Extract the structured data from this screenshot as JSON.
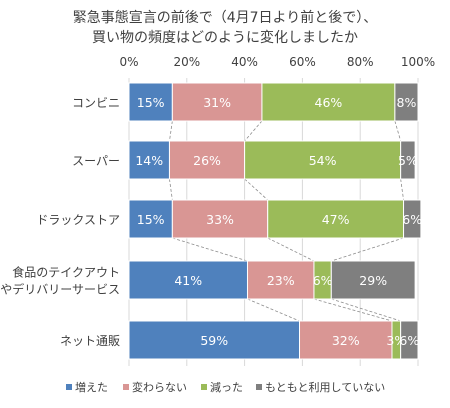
{
  "chart_data": {
    "type": "bar",
    "stacked": true,
    "orientation": "horizontal",
    "title_lines": [
      "緊急事態宣言の前後で（4月7日より前と後で）、",
      "買い物の頻度はどのように変化しましたか"
    ],
    "x_ticks": [
      "0%",
      "20%",
      "40%",
      "60%",
      "80%",
      "100%"
    ],
    "xlim": [
      0,
      100
    ],
    "categories": [
      {
        "lines": [
          "コンビニ"
        ]
      },
      {
        "lines": [
          "スーパー"
        ]
      },
      {
        "lines": [
          "ドラックストア"
        ]
      },
      {
        "lines": [
          "食品のテイクアウト",
          "やデリバリーサービス"
        ]
      },
      {
        "lines": [
          "ネット通販"
        ]
      }
    ],
    "series": [
      {
        "name": "増えた",
        "color": "#4f81bd",
        "values": [
          15,
          14,
          15,
          41,
          59
        ],
        "labels": [
          "15%",
          "14%",
          "15%",
          "41%",
          "59%"
        ]
      },
      {
        "name": "変わらない",
        "color": "#d99694",
        "values": [
          31,
          26,
          33,
          23,
          32
        ],
        "labels": [
          "31%",
          "26%",
          "33%",
          "23%",
          "32%"
        ]
      },
      {
        "name": "減った",
        "color": "#9bbb59",
        "values": [
          46,
          54,
          47,
          6,
          3
        ],
        "labels": [
          "46%",
          "54%",
          "47%",
          "6%",
          "3%"
        ]
      },
      {
        "name": "もともと利用していない",
        "color": "#7f7f7f",
        "values": [
          8,
          5,
          6,
          29,
          6
        ],
        "labels": [
          "8%",
          "5%",
          "6%",
          "29%",
          "6%"
        ]
      }
    ],
    "legend_position": "bottom",
    "grid": true,
    "connector_lines": true
  }
}
